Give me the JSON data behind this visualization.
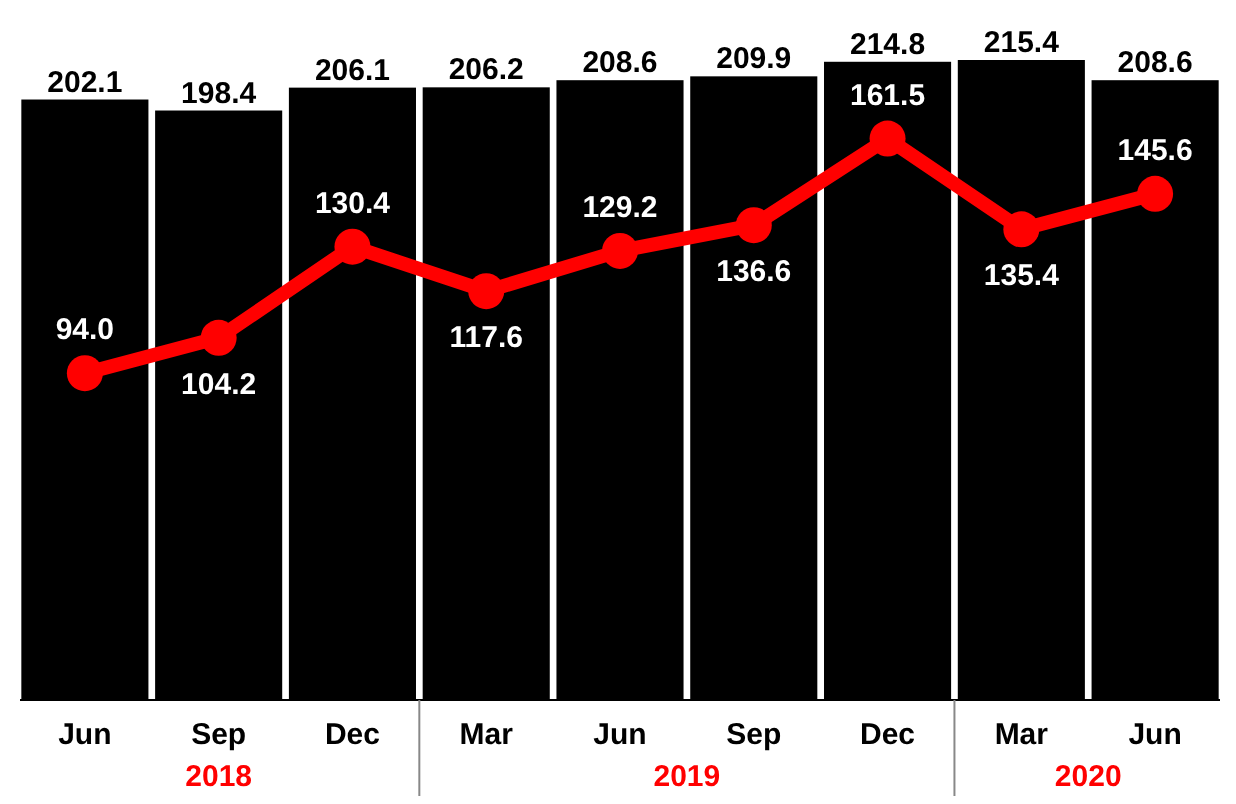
{
  "chart_data": {
    "type": "bar",
    "categories": [
      "Jun",
      "Sep",
      "Dec",
      "Mar",
      "Jun",
      "Sep",
      "Dec",
      "Mar",
      "Jun"
    ],
    "series": [
      {
        "color": "#000000",
        "values": [
          202.1,
          198.4,
          206.1,
          206.2,
          208.6,
          209.9,
          214.8,
          215.4,
          208.6
        ],
        "value_labels": [
          "202.1",
          "198.4",
          "206.1",
          "206.2",
          "208.6",
          "209.9",
          "214.8",
          "215.4",
          "208.6"
        ]
      },
      {
        "type": "line",
        "axis": "y2",
        "color": "#ff0000",
        "values": [
          94.0,
          104.2,
          130.4,
          117.6,
          129.2,
          136.6,
          161.5,
          135.4,
          145.6
        ],
        "value_labels": [
          "94.0",
          "104.2",
          "130.4",
          "117.6",
          "129.2",
          "136.6",
          "161.5",
          "135.4",
          "145.6"
        ]
      }
    ],
    "annotations": [
      "2018",
      "2019",
      "2020"
    ],
    "marker": "circle"
  }
}
